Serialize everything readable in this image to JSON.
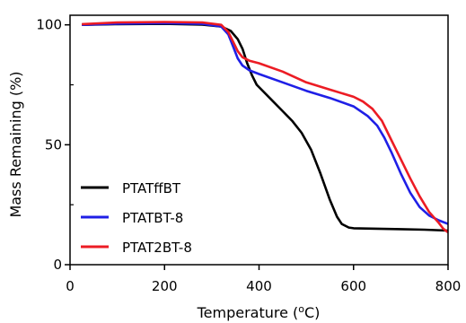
{
  "chart_data": {
    "type": "line",
    "xlabel": "Temperature (",
    "xlabel_sup": "o",
    "xlabel_suffix": "C)",
    "ylabel": "Mass Remaining (%)",
    "xlim": [
      0,
      800
    ],
    "ylim": [
      0,
      104
    ],
    "x_ticks": [
      0,
      200,
      400,
      600,
      800
    ],
    "x_tick_labels": [
      "0",
      "200",
      "400",
      "600",
      "800"
    ],
    "y_ticks": [
      0,
      50,
      100
    ],
    "y_tick_labels": [
      "0",
      "50",
      "100"
    ],
    "y_minor_ticks": [
      25,
      75
    ],
    "grid": false,
    "legend_position": "bottom-left",
    "series": [
      {
        "name": "PTATffBT",
        "color": "#000000",
        "points": [
          [
            25,
            100.0
          ],
          [
            100,
            100.3
          ],
          [
            200,
            100.4
          ],
          [
            280,
            100.1
          ],
          [
            320,
            99.3
          ],
          [
            340,
            97.5
          ],
          [
            355,
            94
          ],
          [
            365,
            90
          ],
          [
            375,
            84
          ],
          [
            385,
            79
          ],
          [
            395,
            75
          ],
          [
            410,
            72
          ],
          [
            430,
            68
          ],
          [
            450,
            64
          ],
          [
            470,
            60
          ],
          [
            490,
            55
          ],
          [
            510,
            48
          ],
          [
            530,
            38
          ],
          [
            550,
            27
          ],
          [
            565,
            20
          ],
          [
            575,
            17
          ],
          [
            590,
            15.5
          ],
          [
            600,
            15.2
          ],
          [
            650,
            15.0
          ],
          [
            700,
            14.8
          ],
          [
            750,
            14.6
          ],
          [
            800,
            14.2
          ]
        ]
      },
      {
        "name": "PTATBT-8",
        "color": "#1f1fe6",
        "points": [
          [
            25,
            100.0
          ],
          [
            100,
            100.5
          ],
          [
            200,
            100.7
          ],
          [
            280,
            100.4
          ],
          [
            320,
            99.3
          ],
          [
            335,
            96
          ],
          [
            345,
            91
          ],
          [
            355,
            86
          ],
          [
            365,
            83
          ],
          [
            380,
            81
          ],
          [
            400,
            79.5
          ],
          [
            450,
            76
          ],
          [
            500,
            72.5
          ],
          [
            550,
            69.5
          ],
          [
            600,
            66
          ],
          [
            630,
            62
          ],
          [
            650,
            58
          ],
          [
            665,
            53
          ],
          [
            680,
            47
          ],
          [
            700,
            38
          ],
          [
            720,
            30
          ],
          [
            740,
            24
          ],
          [
            760,
            20.5
          ],
          [
            780,
            18.5
          ],
          [
            800,
            17
          ]
        ]
      },
      {
        "name": "PTAT2BT-8",
        "color": "#ec1c24",
        "points": [
          [
            25,
            100.3
          ],
          [
            100,
            101.0
          ],
          [
            200,
            101.2
          ],
          [
            280,
            101.0
          ],
          [
            320,
            100.0
          ],
          [
            335,
            97
          ],
          [
            345,
            93
          ],
          [
            355,
            89
          ],
          [
            365,
            86.5
          ],
          [
            380,
            85
          ],
          [
            400,
            84
          ],
          [
            450,
            80.5
          ],
          [
            500,
            76
          ],
          [
            550,
            73
          ],
          [
            600,
            70
          ],
          [
            620,
            68
          ],
          [
            640,
            65
          ],
          [
            660,
            60
          ],
          [
            680,
            52
          ],
          [
            700,
            44
          ],
          [
            720,
            36
          ],
          [
            740,
            28.5
          ],
          [
            760,
            22
          ],
          [
            780,
            17.5
          ],
          [
            790,
            15
          ],
          [
            800,
            13.5
          ]
        ]
      }
    ]
  }
}
